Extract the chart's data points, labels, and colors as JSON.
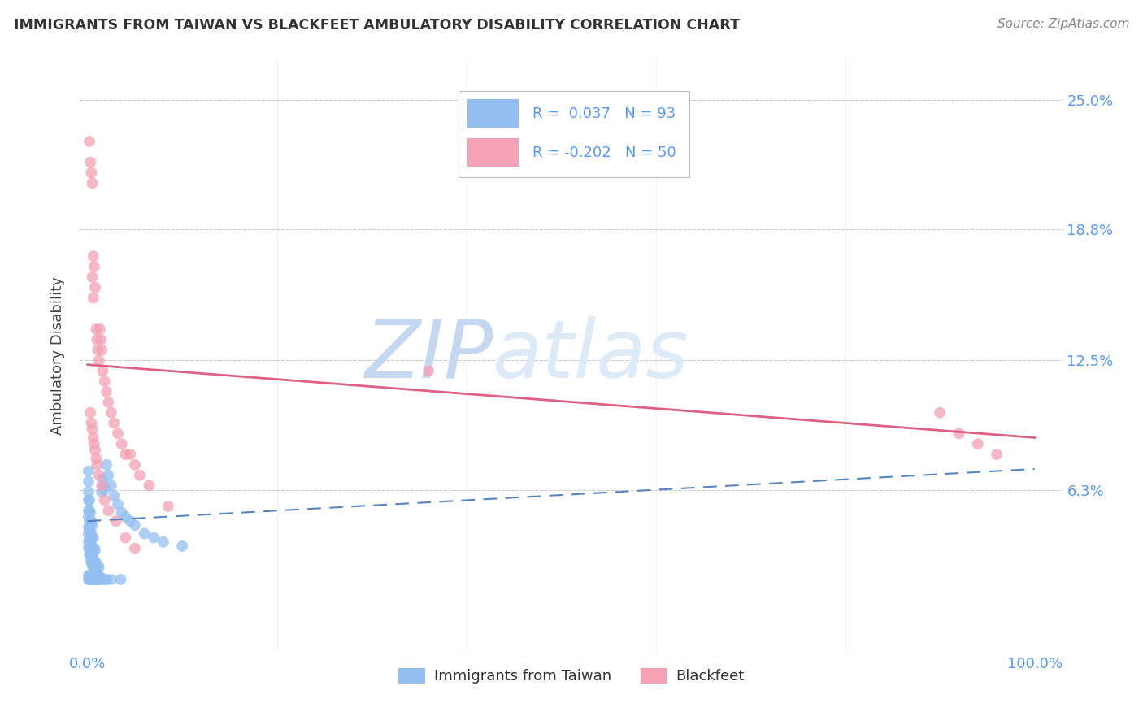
{
  "title": "IMMIGRANTS FROM TAIWAN VS BLACKFEET AMBULATORY DISABILITY CORRELATION CHART",
  "source": "Source: ZipAtlas.com",
  "ylabel": "Ambulatory Disability",
  "taiwan_R": 0.037,
  "taiwan_N": 93,
  "blackfeet_R": -0.202,
  "blackfeet_N": 50,
  "taiwan_color": "#93c0f0",
  "blackfeet_color": "#f4a0b5",
  "taiwan_line_color": "#4477bb",
  "blackfeet_line_color": "#e06080",
  "axis_tick_color": "#5599ff",
  "ylabel_color": "#444444",
  "title_color": "#333333",
  "source_color": "#888888",
  "background_color": "#ffffff",
  "grid_color": "#cccccc",
  "watermark_zip_color": "#c8d8f0",
  "watermark_atlas_color": "#d8e8f8",
  "ytick_vals": [
    0.063,
    0.125,
    0.188,
    0.25
  ],
  "ytick_labels": [
    "6.3%",
    "12.5%",
    "18.8%",
    "25.0%"
  ],
  "xlim": [
    -0.008,
    1.03
  ],
  "ylim": [
    -0.015,
    0.27
  ],
  "taiwan_line_start_x": 0.0,
  "taiwan_line_start_y": 0.048,
  "taiwan_line_end_x": 1.0,
  "taiwan_line_end_y": 0.073,
  "blackfeet_line_start_x": 0.0,
  "blackfeet_line_start_y": 0.123,
  "blackfeet_line_end_x": 1.0,
  "blackfeet_line_end_y": 0.088,
  "tw_x": [
    0.001,
    0.001,
    0.001,
    0.001,
    0.001,
    0.001,
    0.001,
    0.001,
    0.001,
    0.001,
    0.002,
    0.002,
    0.002,
    0.002,
    0.002,
    0.002,
    0.002,
    0.003,
    0.003,
    0.003,
    0.003,
    0.003,
    0.003,
    0.004,
    0.004,
    0.004,
    0.004,
    0.004,
    0.005,
    0.005,
    0.005,
    0.005,
    0.005,
    0.006,
    0.006,
    0.006,
    0.006,
    0.007,
    0.007,
    0.007,
    0.008,
    0.008,
    0.008,
    0.009,
    0.009,
    0.01,
    0.01,
    0.011,
    0.011,
    0.012,
    0.012,
    0.013,
    0.014,
    0.015,
    0.016,
    0.017,
    0.018,
    0.02,
    0.022,
    0.025,
    0.028,
    0.032,
    0.036,
    0.04,
    0.045,
    0.05,
    0.06,
    0.07,
    0.08,
    0.1,
    0.001,
    0.001,
    0.002,
    0.002,
    0.003,
    0.003,
    0.004,
    0.004,
    0.005,
    0.005,
    0.006,
    0.006,
    0.007,
    0.008,
    0.009,
    0.01,
    0.011,
    0.013,
    0.015,
    0.018,
    0.02,
    0.025,
    0.035
  ],
  "tw_y": [
    0.035,
    0.038,
    0.042,
    0.045,
    0.05,
    0.053,
    0.058,
    0.062,
    0.067,
    0.072,
    0.032,
    0.036,
    0.04,
    0.044,
    0.048,
    0.053,
    0.058,
    0.03,
    0.034,
    0.038,
    0.042,
    0.046,
    0.052,
    0.028,
    0.032,
    0.036,
    0.042,
    0.048,
    0.027,
    0.031,
    0.035,
    0.04,
    0.046,
    0.026,
    0.03,
    0.034,
    0.04,
    0.025,
    0.029,
    0.035,
    0.024,
    0.028,
    0.034,
    0.023,
    0.028,
    0.022,
    0.027,
    0.022,
    0.026,
    0.021,
    0.026,
    0.021,
    0.021,
    0.062,
    0.068,
    0.065,
    0.063,
    0.075,
    0.07,
    0.065,
    0.06,
    0.056,
    0.052,
    0.05,
    0.048,
    0.046,
    0.042,
    0.04,
    0.038,
    0.036,
    0.02,
    0.022,
    0.02,
    0.022,
    0.02,
    0.022,
    0.02,
    0.022,
    0.02,
    0.022,
    0.02,
    0.022,
    0.02,
    0.02,
    0.02,
    0.02,
    0.02,
    0.02,
    0.02,
    0.02,
    0.02,
    0.02,
    0.02
  ],
  "bf_x": [
    0.002,
    0.003,
    0.004,
    0.005,
    0.005,
    0.006,
    0.006,
    0.007,
    0.008,
    0.009,
    0.01,
    0.011,
    0.012,
    0.013,
    0.014,
    0.015,
    0.016,
    0.018,
    0.02,
    0.022,
    0.025,
    0.028,
    0.032,
    0.036,
    0.04,
    0.045,
    0.05,
    0.055,
    0.065,
    0.085,
    0.003,
    0.004,
    0.005,
    0.006,
    0.007,
    0.008,
    0.009,
    0.01,
    0.012,
    0.015,
    0.018,
    0.022,
    0.03,
    0.04,
    0.05,
    0.36,
    0.9,
    0.92,
    0.94,
    0.96
  ],
  "bf_y": [
    0.23,
    0.22,
    0.215,
    0.21,
    0.165,
    0.175,
    0.155,
    0.17,
    0.16,
    0.14,
    0.135,
    0.13,
    0.125,
    0.14,
    0.135,
    0.13,
    0.12,
    0.115,
    0.11,
    0.105,
    0.1,
    0.095,
    0.09,
    0.085,
    0.08,
    0.08,
    0.075,
    0.07,
    0.065,
    0.055,
    0.1,
    0.095,
    0.092,
    0.088,
    0.085,
    0.082,
    0.078,
    0.075,
    0.07,
    0.065,
    0.058,
    0.053,
    0.048,
    0.04,
    0.035,
    0.12,
    0.1,
    0.09,
    0.085,
    0.08
  ]
}
